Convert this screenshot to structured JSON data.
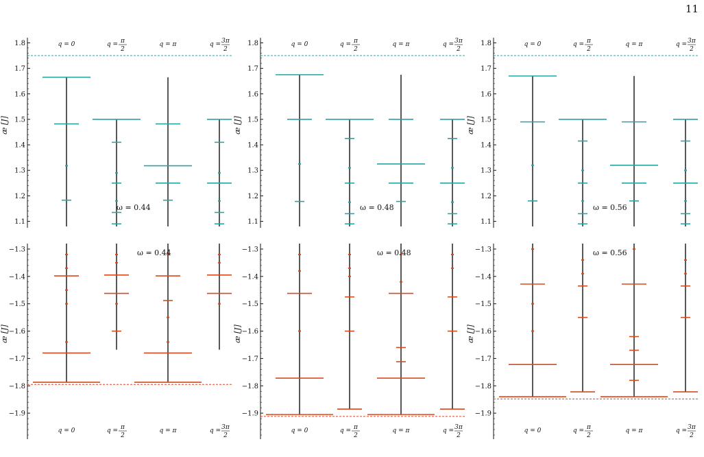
{
  "page_number": "11",
  "colors": {
    "upper": "#2aa3a3",
    "lower": "#d84a1e",
    "stem": "#111111",
    "refline_upper": "#2aa3a3",
    "refline_lower": "#e0442a"
  },
  "chart_data": [
    {
      "type": "scatter",
      "band": "upper",
      "omega_label": "ω = 0.44",
      "ylabel": "æ [J]",
      "ylim": [
        1.08,
        1.82
      ],
      "yticks": [
        "1.1",
        "1.2",
        "1.3",
        "1.4",
        "1.5",
        "1.6",
        "1.7",
        "1.8"
      ],
      "q_labels": [
        "q = 0",
        "q = π/2",
        "q = π",
        "q = 3π/2"
      ],
      "reference_line": 1.75,
      "stems": [
        {
          "q": "q = 0",
          "top": 1.665,
          "bottom": 1.08,
          "levels": [
            {
              "y": 1.665,
              "w": "long"
            },
            {
              "y": 1.482,
              "w": "mid"
            },
            {
              "y": 1.318,
              "w": "dot"
            },
            {
              "y": 1.183,
              "w": "short"
            }
          ]
        },
        {
          "q": "q = π/2",
          "top": 1.5,
          "bottom": 1.08,
          "levels": [
            {
              "y": 1.5,
              "w": "long"
            },
            {
              "y": 1.41,
              "w": "short"
            },
            {
              "y": 1.29,
              "w": "dot"
            },
            {
              "y": 1.25,
              "w": "short"
            },
            {
              "y": 1.18,
              "w": "dot"
            },
            {
              "y": 1.135,
              "w": "short"
            },
            {
              "y": 1.09,
              "w": "short"
            }
          ]
        },
        {
          "q": "q = π",
          "top": 1.665,
          "bottom": 1.08,
          "levels": [
            {
              "y": 1.482,
              "w": "mid"
            },
            {
              "y": 1.318,
              "w": "long"
            },
            {
              "y": 1.25,
              "w": "mid"
            },
            {
              "y": 1.183,
              "w": "short"
            }
          ]
        },
        {
          "q": "q = 3π/2",
          "top": 1.5,
          "bottom": 1.08,
          "levels": [
            {
              "y": 1.5,
              "w": "mid"
            },
            {
              "y": 1.41,
              "w": "short"
            },
            {
              "y": 1.29,
              "w": "dot"
            },
            {
              "y": 1.25,
              "w": "mid"
            },
            {
              "y": 1.18,
              "w": "dot"
            },
            {
              "y": 1.135,
              "w": "short"
            },
            {
              "y": 1.09,
              "w": "short"
            }
          ]
        }
      ]
    },
    {
      "type": "scatter",
      "band": "upper",
      "omega_label": "ω = 0.48",
      "ylabel": "æ [J]",
      "ylim": [
        1.08,
        1.82
      ],
      "yticks": [
        "1.1",
        "1.2",
        "1.3",
        "1.4",
        "1.5",
        "1.6",
        "1.7",
        "1.8"
      ],
      "q_labels": [
        "q = 0",
        "q = π/2",
        "q = π",
        "q = 3π/2"
      ],
      "reference_line": 1.75,
      "stems": [
        {
          "q": "q = 0",
          "top": 1.675,
          "bottom": 1.08,
          "levels": [
            {
              "y": 1.675,
              "w": "long"
            },
            {
              "y": 1.5,
              "w": "mid"
            },
            {
              "y": 1.325,
              "w": "dot"
            },
            {
              "y": 1.178,
              "w": "short"
            }
          ]
        },
        {
          "q": "q = π/2",
          "top": 1.5,
          "bottom": 1.08,
          "levels": [
            {
              "y": 1.5,
              "w": "long"
            },
            {
              "y": 1.425,
              "w": "short"
            },
            {
              "y": 1.31,
              "w": "dot"
            },
            {
              "y": 1.25,
              "w": "short"
            },
            {
              "y": 1.175,
              "w": "dot"
            },
            {
              "y": 1.13,
              "w": "short"
            },
            {
              "y": 1.09,
              "w": "short"
            }
          ]
        },
        {
          "q": "q = π",
          "top": 1.675,
          "bottom": 1.08,
          "levels": [
            {
              "y": 1.5,
              "w": "mid"
            },
            {
              "y": 1.325,
              "w": "long"
            },
            {
              "y": 1.25,
              "w": "mid"
            },
            {
              "y": 1.178,
              "w": "short"
            }
          ]
        },
        {
          "q": "q = 3π/2",
          "top": 1.5,
          "bottom": 1.08,
          "levels": [
            {
              "y": 1.5,
              "w": "mid"
            },
            {
              "y": 1.425,
              "w": "short"
            },
            {
              "y": 1.31,
              "w": "dot"
            },
            {
              "y": 1.25,
              "w": "mid"
            },
            {
              "y": 1.175,
              "w": "dot"
            },
            {
              "y": 1.13,
              "w": "short"
            },
            {
              "y": 1.09,
              "w": "short"
            }
          ]
        }
      ]
    },
    {
      "type": "scatter",
      "band": "upper",
      "omega_label": "ω = 0.56",
      "ylabel": "æ [J]",
      "ylim": [
        1.08,
        1.82
      ],
      "yticks": [
        "1.1",
        "1.2",
        "1.3",
        "1.4",
        "1.5",
        "1.6",
        "1.7",
        "1.8"
      ],
      "q_labels": [
        "q = 0",
        "q = π/2",
        "q = π",
        "q = 3π/2"
      ],
      "reference_line": 1.75,
      "stems": [
        {
          "q": "q = 0",
          "top": 1.67,
          "bottom": 1.08,
          "levels": [
            {
              "y": 1.67,
              "w": "long"
            },
            {
              "y": 1.49,
              "w": "mid"
            },
            {
              "y": 1.32,
              "w": "dot"
            },
            {
              "y": 1.18,
              "w": "short"
            }
          ]
        },
        {
          "q": "q = π/2",
          "top": 1.5,
          "bottom": 1.08,
          "levels": [
            {
              "y": 1.5,
              "w": "long"
            },
            {
              "y": 1.415,
              "w": "short"
            },
            {
              "y": 1.3,
              "w": "dot"
            },
            {
              "y": 1.25,
              "w": "short"
            },
            {
              "y": 1.18,
              "w": "dot"
            },
            {
              "y": 1.13,
              "w": "short"
            },
            {
              "y": 1.09,
              "w": "short"
            }
          ]
        },
        {
          "q": "q = π",
          "top": 1.67,
          "bottom": 1.08,
          "levels": [
            {
              "y": 1.49,
              "w": "mid"
            },
            {
              "y": 1.32,
              "w": "long"
            },
            {
              "y": 1.25,
              "w": "mid"
            },
            {
              "y": 1.18,
              "w": "short"
            }
          ]
        },
        {
          "q": "q = 3π/2",
          "top": 1.5,
          "bottom": 1.08,
          "levels": [
            {
              "y": 1.5,
              "w": "mid"
            },
            {
              "y": 1.415,
              "w": "short"
            },
            {
              "y": 1.3,
              "w": "dot"
            },
            {
              "y": 1.25,
              "w": "mid"
            },
            {
              "y": 1.18,
              "w": "dot"
            },
            {
              "y": 1.13,
              "w": "short"
            },
            {
              "y": 1.09,
              "w": "short"
            }
          ]
        }
      ]
    },
    {
      "type": "scatter",
      "band": "lower",
      "omega_label": "ω = 0.44",
      "ylabel": "æ [J]",
      "ylim": [
        -1.99,
        -1.28
      ],
      "yticks": [
        "-1.3",
        "-1.4",
        "-1.5",
        "-1.6",
        "-1.7",
        "-1.8",
        "-1.9"
      ],
      "q_labels": [
        "q = 0",
        "q = π/2",
        "q = π",
        "q = 3π/2"
      ],
      "reference_line": -1.795,
      "stems": [
        {
          "q": "q = 0",
          "top": -1.28,
          "bottom": -1.787,
          "levels": [
            {
              "y": -1.398,
              "w": "mid"
            },
            {
              "y": -1.68,
              "w": "long"
            },
            {
              "y": -1.787,
              "w": "xlong"
            },
            {
              "y": -1.64,
              "w": "dot"
            },
            {
              "y": -1.5,
              "w": "dot"
            },
            {
              "y": -1.45,
              "w": "dot"
            },
            {
              "y": -1.32,
              "w": "dot"
            },
            {
              "y": -1.37,
              "w": "dot"
            }
          ]
        },
        {
          "q": "q = π/2",
          "top": -1.28,
          "bottom": -1.668,
          "levels": [
            {
              "y": -1.395,
              "w": "mid"
            },
            {
              "y": -1.462,
              "w": "mid"
            },
            {
              "y": -1.5,
              "w": "dot"
            },
            {
              "y": -1.6,
              "w": "short"
            },
            {
              "y": -1.32,
              "w": "dot"
            },
            {
              "y": -1.35,
              "w": "dot"
            }
          ]
        },
        {
          "q": "q = π",
          "top": -1.28,
          "bottom": -1.787,
          "levels": [
            {
              "y": -1.398,
              "w": "mid"
            },
            {
              "y": -1.488,
              "w": "short"
            },
            {
              "y": -1.68,
              "w": "long"
            },
            {
              "y": -1.787,
              "w": "xlong"
            },
            {
              "y": -1.64,
              "w": "dot"
            },
            {
              "y": -1.55,
              "w": "dot"
            },
            {
              "y": -1.32,
              "w": "dot"
            }
          ]
        },
        {
          "q": "q = 3π/2",
          "top": -1.28,
          "bottom": -1.668,
          "levels": [
            {
              "y": -1.395,
              "w": "mid"
            },
            {
              "y": -1.462,
              "w": "mid"
            },
            {
              "y": -1.5,
              "w": "dot"
            },
            {
              "y": -1.32,
              "w": "dot"
            },
            {
              "y": -1.35,
              "w": "dot"
            }
          ]
        }
      ]
    },
    {
      "type": "scatter",
      "band": "lower",
      "omega_label": "ω = 0.48",
      "ylabel": "æ [J]",
      "ylim": [
        -1.99,
        -1.28
      ],
      "yticks": [
        "-1.3",
        "-1.4",
        "-1.5",
        "-1.6",
        "-1.7",
        "-1.8",
        "-1.9"
      ],
      "q_labels": [
        "q = 0",
        "q = π/2",
        "q = π",
        "q = 3π/2"
      ],
      "reference_line": -1.912,
      "stems": [
        {
          "q": "q = 0",
          "top": -1.28,
          "bottom": -1.905,
          "levels": [
            {
              "y": -1.462,
              "w": "mid"
            },
            {
              "y": -1.772,
              "w": "long"
            },
            {
              "y": -1.905,
              "w": "xlong"
            },
            {
              "y": -1.6,
              "w": "dot"
            },
            {
              "y": -1.32,
              "w": "dot"
            },
            {
              "y": -1.38,
              "w": "dot"
            }
          ]
        },
        {
          "q": "q = π/2",
          "top": -1.28,
          "bottom": -1.885,
          "levels": [
            {
              "y": -1.475,
              "w": "short"
            },
            {
              "y": -1.6,
              "w": "short"
            },
            {
              "y": -1.885,
              "w": "mid"
            },
            {
              "y": -1.32,
              "w": "dot"
            },
            {
              "y": -1.37,
              "w": "dot"
            },
            {
              "y": -1.4,
              "w": "dot"
            }
          ]
        },
        {
          "q": "q = π",
          "top": -1.28,
          "bottom": -1.905,
          "levels": [
            {
              "y": -1.462,
              "w": "mid"
            },
            {
              "y": -1.66,
              "w": "short"
            },
            {
              "y": -1.712,
              "w": "short"
            },
            {
              "y": -1.772,
              "w": "long"
            },
            {
              "y": -1.905,
              "w": "xlong"
            },
            {
              "y": -1.42,
              "w": "dot"
            },
            {
              "y": -1.32,
              "w": "dot"
            }
          ]
        },
        {
          "q": "q = 3π/2",
          "top": -1.28,
          "bottom": -1.885,
          "levels": [
            {
              "y": -1.475,
              "w": "short"
            },
            {
              "y": -1.6,
              "w": "short"
            },
            {
              "y": -1.885,
              "w": "mid"
            },
            {
              "y": -1.32,
              "w": "dot"
            },
            {
              "y": -1.37,
              "w": "dot"
            }
          ]
        }
      ]
    },
    {
      "type": "scatter",
      "band": "lower",
      "omega_label": "ω = 0.56",
      "ylabel": "æ [J]",
      "ylim": [
        -1.99,
        -1.28
      ],
      "yticks": [
        "-1.3",
        "-1.4",
        "-1.5",
        "-1.6",
        "-1.7",
        "-1.8",
        "-1.9"
      ],
      "q_labels": [
        "q = 0",
        "q = π/2",
        "q = π",
        "q = 3π/2"
      ],
      "reference_line": -1.848,
      "stems": [
        {
          "q": "q = 0",
          "top": -1.28,
          "bottom": -1.84,
          "levels": [
            {
              "y": -1.428,
              "w": "mid"
            },
            {
              "y": -1.722,
              "w": "long"
            },
            {
              "y": -1.84,
              "w": "xlong"
            },
            {
              "y": -1.6,
              "w": "dot"
            },
            {
              "y": -1.3,
              "w": "dot"
            },
            {
              "y": -1.5,
              "w": "dot"
            }
          ]
        },
        {
          "q": "q = π/2",
          "top": -1.28,
          "bottom": -1.822,
          "levels": [
            {
              "y": -1.435,
              "w": "short"
            },
            {
              "y": -1.55,
              "w": "short"
            },
            {
              "y": -1.822,
              "w": "mid"
            },
            {
              "y": -1.34,
              "w": "dot"
            },
            {
              "y": -1.39,
              "w": "dot"
            }
          ]
        },
        {
          "q": "q = π",
          "top": -1.28,
          "bottom": -1.84,
          "levels": [
            {
              "y": -1.428,
              "w": "mid"
            },
            {
              "y": -1.62,
              "w": "short"
            },
            {
              "y": -1.67,
              "w": "short"
            },
            {
              "y": -1.722,
              "w": "long"
            },
            {
              "y": -1.84,
              "w": "xlong"
            },
            {
              "y": -1.3,
              "w": "dot"
            },
            {
              "y": -1.78,
              "w": "short"
            }
          ]
        },
        {
          "q": "q = 3π/2",
          "top": -1.28,
          "bottom": -1.822,
          "levels": [
            {
              "y": -1.435,
              "w": "short"
            },
            {
              "y": -1.55,
              "w": "short"
            },
            {
              "y": -1.822,
              "w": "mid"
            },
            {
              "y": -1.34,
              "w": "dot"
            },
            {
              "y": -1.39,
              "w": "dot"
            }
          ]
        }
      ]
    }
  ]
}
